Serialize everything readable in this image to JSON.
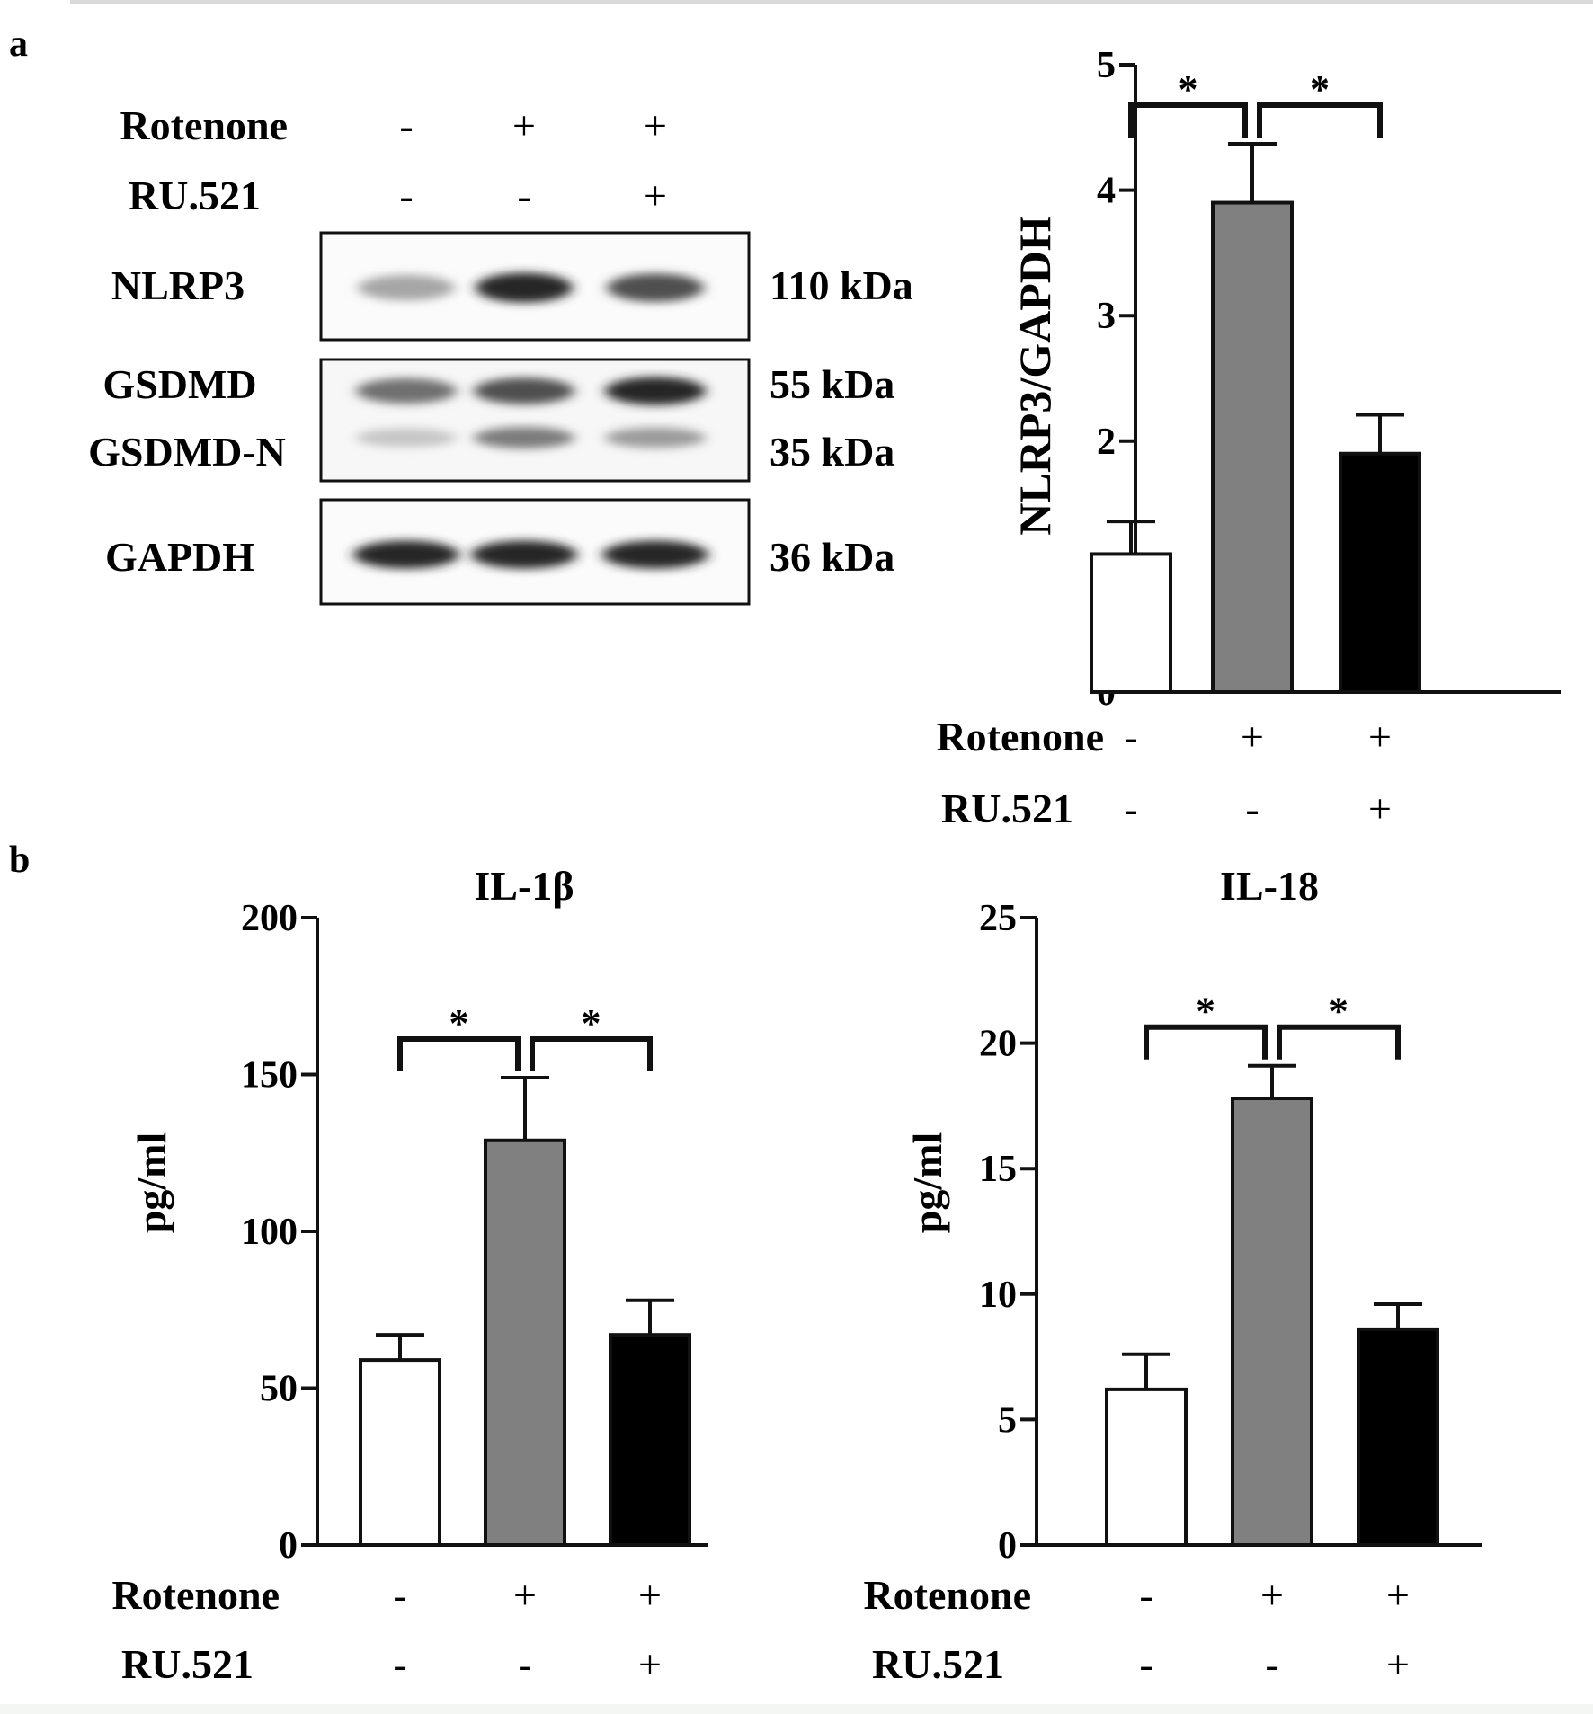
{
  "panels": {
    "a": {
      "label": "a"
    },
    "b": {
      "label": "b"
    }
  },
  "blot": {
    "treatments": [
      {
        "label": "Rotenone",
        "signs": [
          "-",
          "+",
          "+"
        ]
      },
      {
        "label": "RU.521",
        "signs": [
          "-",
          "-",
          "+"
        ]
      }
    ],
    "proteins": [
      {
        "name": "NLRP3",
        "size": "110 kDa",
        "intensity": [
          0.3,
          0.9,
          0.7
        ]
      },
      {
        "name": "GSDMD",
        "size": "55 kDa",
        "intensity": [
          0.55,
          0.7,
          0.9
        ]
      },
      {
        "name": "GSDMD-N",
        "size": "35 kDa",
        "intensity": [
          0.15,
          0.5,
          0.35
        ]
      },
      {
        "name": "GAPDH",
        "size": "36 kDa",
        "intensity": [
          0.9,
          0.9,
          0.9
        ]
      }
    ]
  },
  "chart_data": [
    {
      "type": "bar",
      "title": "",
      "xlabel": "",
      "ylabel": "NLRP3/GAPDH",
      "ylim": [
        0,
        5
      ],
      "yticks": [
        0,
        1,
        2,
        3,
        4,
        5
      ],
      "categories": [
        "-/-",
        "+/-",
        "+/+"
      ],
      "values": [
        1.1,
        3.9,
        1.9
      ],
      "errors": [
        0.26,
        0.47,
        0.31
      ],
      "colors": [
        "#ffffff",
        "#808080",
        "#000000"
      ],
      "significance": [
        {
          "from": 0,
          "to": 1,
          "label": "*"
        },
        {
          "from": 1,
          "to": 2,
          "label": "*"
        }
      ],
      "treatments": [
        {
          "label": "Rotenone",
          "signs": [
            "-",
            "+",
            "+"
          ]
        },
        {
          "label": "RU.521",
          "signs": [
            "-",
            "-",
            "+"
          ]
        }
      ],
      "grid": false
    },
    {
      "type": "bar",
      "title": "IL-1β",
      "xlabel": "",
      "ylabel": "pg/ml",
      "ylim": [
        0,
        200
      ],
      "yticks": [
        0,
        50,
        100,
        150,
        200
      ],
      "categories": [
        "-/-",
        "+/-",
        "+/+"
      ],
      "values": [
        59,
        129,
        67
      ],
      "errors": [
        8,
        20,
        11
      ],
      "colors": [
        "#ffffff",
        "#808080",
        "#000000"
      ],
      "significance": [
        {
          "from": 0,
          "to": 1,
          "label": "*"
        },
        {
          "from": 1,
          "to": 2,
          "label": "*"
        }
      ],
      "treatments": [
        {
          "label": "Rotenone",
          "signs": [
            "-",
            "+",
            "+"
          ]
        },
        {
          "label": "RU.521",
          "signs": [
            "-",
            "-",
            "+"
          ]
        }
      ],
      "grid": false
    },
    {
      "type": "bar",
      "title": "IL-18",
      "xlabel": "",
      "ylabel": "pg/ml",
      "ylim": [
        0,
        25
      ],
      "yticks": [
        0,
        5,
        10,
        15,
        20,
        25
      ],
      "categories": [
        "-/-",
        "+/-",
        "+/+"
      ],
      "values": [
        6.2,
        17.8,
        8.6
      ],
      "errors": [
        1.4,
        1.3,
        1.0
      ],
      "colors": [
        "#ffffff",
        "#808080",
        "#000000"
      ],
      "significance": [
        {
          "from": 0,
          "to": 1,
          "label": "*"
        },
        {
          "from": 1,
          "to": 2,
          "label": "*"
        }
      ],
      "treatments": [
        {
          "label": "Rotenone",
          "signs": [
            "-",
            "+",
            "+"
          ]
        },
        {
          "label": "RU.521",
          "signs": [
            "-",
            "-",
            "+"
          ]
        }
      ],
      "grid": false
    }
  ]
}
